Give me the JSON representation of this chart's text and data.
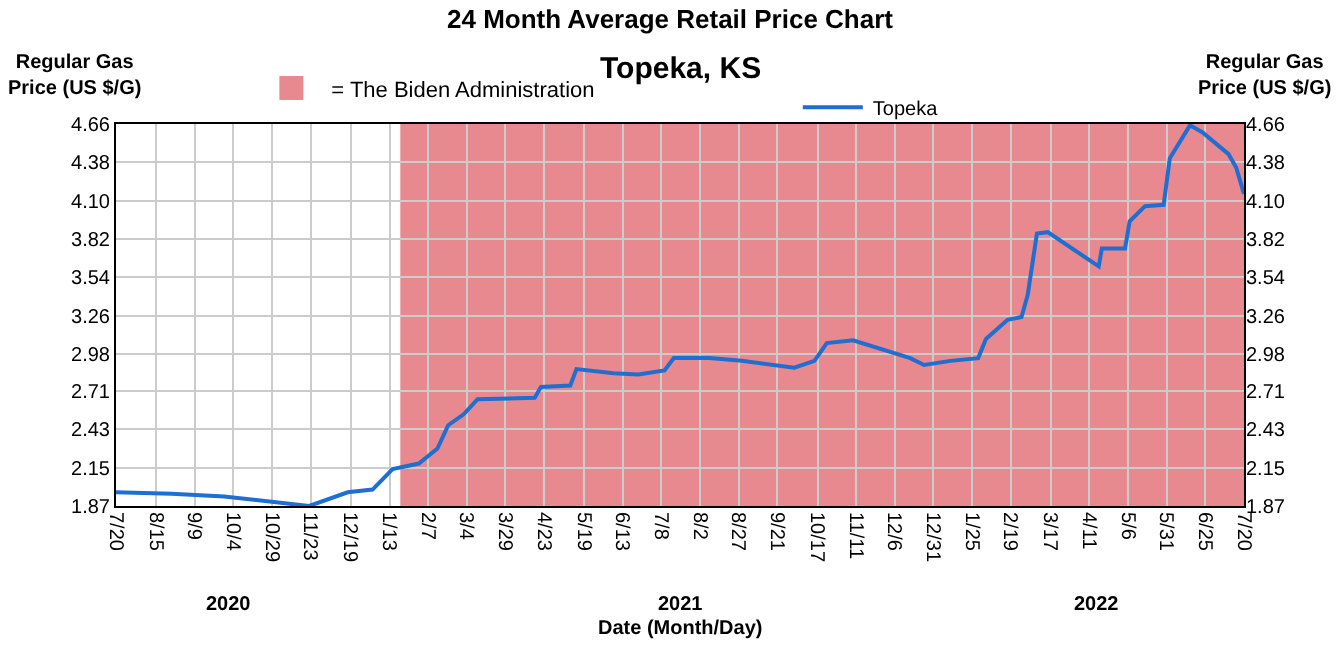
{
  "chart_data": {
    "type": "line",
    "title": "24 Month Average Retail Price Chart",
    "subtitle": "Topeka, KS",
    "xlabel": "Date (Month/Day)",
    "ylabel": "Regular Gas Price (US $/G)",
    "y2label": "Regular Gas Price (US $/G)",
    "annotations": [
      "2020",
      "2021",
      "2022"
    ],
    "series": [
      {
        "name": "Topeka",
        "color": "#1f6fd0",
        "x": [
          "2020-07-20",
          "2020-08-25",
          "2020-09-28",
          "2020-11-22",
          "2020-12-17",
          "2021-01-02",
          "2021-01-15",
          "2021-02-01",
          "2021-02-13",
          "2021-02-20",
          "2021-03-02",
          "2021-03-11",
          "2021-04-17",
          "2021-04-21",
          "2021-05-10",
          "2021-05-14",
          "2021-06-07",
          "2021-06-23",
          "2021-07-10",
          "2021-07-16",
          "2021-08-08",
          "2021-08-29",
          "2021-10-02",
          "2021-10-15",
          "2021-10-23",
          "2021-11-09",
          "2021-12-16",
          "2021-12-25",
          "2022-01-11",
          "2022-01-29",
          "2022-02-03",
          "2022-02-17",
          "2022-02-26",
          "2022-03-02",
          "2022-03-08",
          "2022-03-15",
          "2022-04-17",
          "2022-04-19",
          "2022-05-04",
          "2022-05-07",
          "2022-05-17",
          "2022-05-29",
          "2022-06-02",
          "2022-06-15",
          "2022-06-23",
          "2022-07-10",
          "2022-07-15",
          "2022-07-20"
        ],
        "values": [
          1.97,
          1.96,
          1.94,
          1.87,
          1.97,
          1.99,
          2.14,
          2.18,
          2.29,
          2.46,
          2.54,
          2.65,
          2.66,
          2.74,
          2.75,
          2.87,
          2.84,
          2.83,
          2.86,
          2.95,
          2.95,
          2.93,
          2.88,
          2.93,
          3.06,
          3.08,
          2.95,
          2.9,
          2.93,
          2.95,
          3.09,
          3.23,
          3.25,
          3.41,
          3.86,
          3.87,
          3.62,
          3.75,
          3.75,
          3.95,
          4.06,
          4.07,
          4.41,
          4.65,
          4.6,
          4.44,
          4.34,
          4.15
        ]
      }
    ],
    "bands": [
      {
        "axis": "x",
        "from": "2021-01-20",
        "to": "2022-07-20",
        "label": "= The Biden Administration",
        "color": "#e8888f"
      }
    ],
    "xlim": [
      "2020-07-20",
      "2022-07-20"
    ],
    "xticks": [
      {
        "value": "2020-07-20",
        "label": "7/20"
      },
      {
        "value": "2020-08-15",
        "label": "8/15"
      },
      {
        "value": "2020-09-09",
        "label": "9/9"
      },
      {
        "value": "2020-10-04",
        "label": "10/4"
      },
      {
        "value": "2020-10-29",
        "label": "10/29"
      },
      {
        "value": "2020-11-23",
        "label": "11/23"
      },
      {
        "value": "2020-12-19",
        "label": "12/19"
      },
      {
        "value": "2021-01-13",
        "label": "1/13"
      },
      {
        "value": "2021-02-07",
        "label": "2/7"
      },
      {
        "value": "2021-03-04",
        "label": "3/4"
      },
      {
        "value": "2021-03-29",
        "label": "3/29"
      },
      {
        "value": "2021-04-23",
        "label": "4/23"
      },
      {
        "value": "2021-05-19",
        "label": "5/19"
      },
      {
        "value": "2021-06-13",
        "label": "6/13"
      },
      {
        "value": "2021-07-08",
        "label": "7/8"
      },
      {
        "value": "2021-08-02",
        "label": "8/2"
      },
      {
        "value": "2021-08-27",
        "label": "8/27"
      },
      {
        "value": "2021-09-21",
        "label": "9/21"
      },
      {
        "value": "2021-10-17",
        "label": "10/17"
      },
      {
        "value": "2021-11-11",
        "label": "11/11"
      },
      {
        "value": "2021-12-06",
        "label": "12/6"
      },
      {
        "value": "2021-12-31",
        "label": "12/31"
      },
      {
        "value": "2022-01-25",
        "label": "1/25"
      },
      {
        "value": "2022-02-19",
        "label": "2/19"
      },
      {
        "value": "2022-03-17",
        "label": "3/17"
      },
      {
        "value": "2022-04-11",
        "label": "4/11"
      },
      {
        "value": "2022-05-06",
        "label": "5/6"
      },
      {
        "value": "2022-05-31",
        "label": "5/31"
      },
      {
        "value": "2022-06-25",
        "label": "6/25"
      },
      {
        "value": "2022-07-20",
        "label": "7/20"
      }
    ],
    "ylim": [
      1.87,
      4.66
    ],
    "yticks": [
      1.87,
      2.15,
      2.43,
      2.71,
      2.98,
      3.26,
      3.54,
      3.82,
      {
        "value": 4.1,
        "label": "4.10"
      },
      4.38,
      4.66
    ],
    "y2lim": [
      1.87,
      4.66
    ],
    "y2ticks": [
      1.87,
      2.15,
      2.43,
      2.71,
      2.98,
      3.26,
      3.54,
      3.82,
      {
        "value": 4.1,
        "label": "4.10"
      },
      4.38,
      4.66
    ],
    "grid": true,
    "legend": "top",
    "marker": "none",
    "line_style": "solid"
  }
}
